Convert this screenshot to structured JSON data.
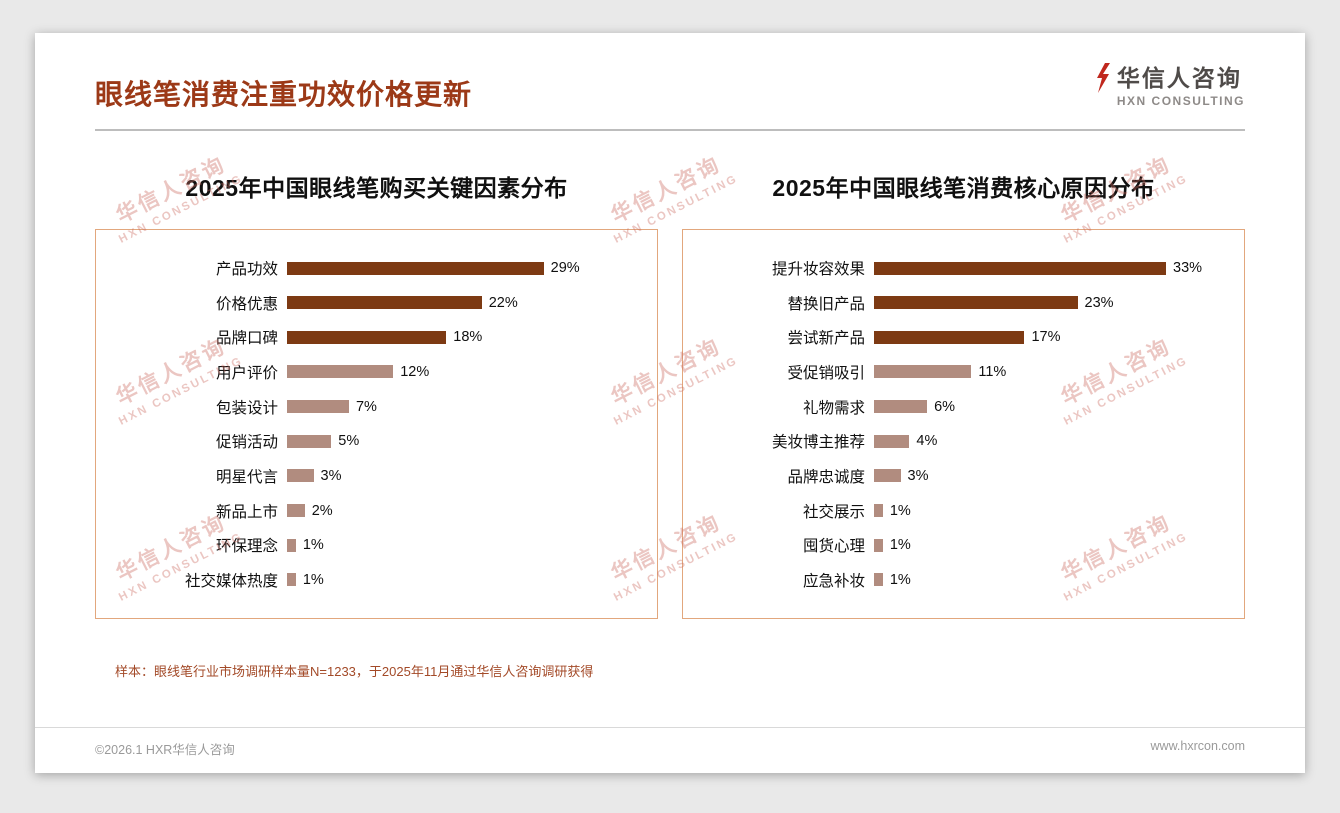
{
  "page": {
    "title": "眼线笔消费注重功效价格更新",
    "logo": {
      "name": "华信人咨询",
      "subtitle": "HXN CONSULTING"
    },
    "watermark": {
      "line1": "华信人咨询",
      "line2": "HXN CONSULTING"
    },
    "footnote": "样本：眼线笔行业市场调研样本量N=1233，于2025年11月通过华信人咨询调研获得",
    "footer_left": "©2026.1 HXR华信人咨询",
    "footer_right": "www.hxrcon.com"
  },
  "colors": {
    "accent_title": "#9c3917",
    "bar_dark": "#7d3a13",
    "bar_light": "#b18c7f",
    "panel_border": "#e2a77d",
    "logo_mark_red": "#c0281e"
  },
  "chart_data": [
    {
      "type": "bar",
      "orientation": "horizontal",
      "title": "2025年中国眼线笔购买关键因素分布",
      "categories": [
        "产品功效",
        "价格优惠",
        "品牌口碑",
        "用户评价",
        "包装设计",
        "促销活动",
        "明星代言",
        "新品上市",
        "环保理念",
        "社交媒体热度"
      ],
      "values": [
        29,
        22,
        18,
        12,
        7,
        5,
        3,
        2,
        1,
        1
      ],
      "unit": "%",
      "dark_count": 3,
      "xlim": [
        0,
        40
      ],
      "grid": false,
      "legend": "none"
    },
    {
      "type": "bar",
      "orientation": "horizontal",
      "title": "2025年中国眼线笔消费核心原因分布",
      "categories": [
        "提升妆容效果",
        "替换旧产品",
        "尝试新产品",
        "受促销吸引",
        "礼物需求",
        "美妆博主推荐",
        "品牌忠诚度",
        "社交展示",
        "囤货心理",
        "应急补妆"
      ],
      "values": [
        33,
        23,
        17,
        11,
        6,
        4,
        3,
        1,
        1,
        1
      ],
      "unit": "%",
      "dark_count": 3,
      "xlim": [
        0,
        40
      ],
      "grid": false,
      "legend": "none"
    }
  ]
}
